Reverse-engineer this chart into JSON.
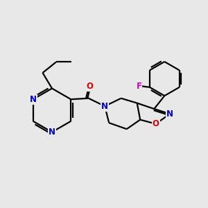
{
  "background_color": "#e8e8e8",
  "bond_color": "#000000",
  "N_color": "#0000cc",
  "O_color": "#dd0000",
  "F_color": "#cc00cc",
  "line_width": 1.6,
  "figsize": [
    3.0,
    3.0
  ],
  "dpi": 100,
  "xlim": [
    0,
    10
  ],
  "ylim": [
    0,
    10
  ]
}
